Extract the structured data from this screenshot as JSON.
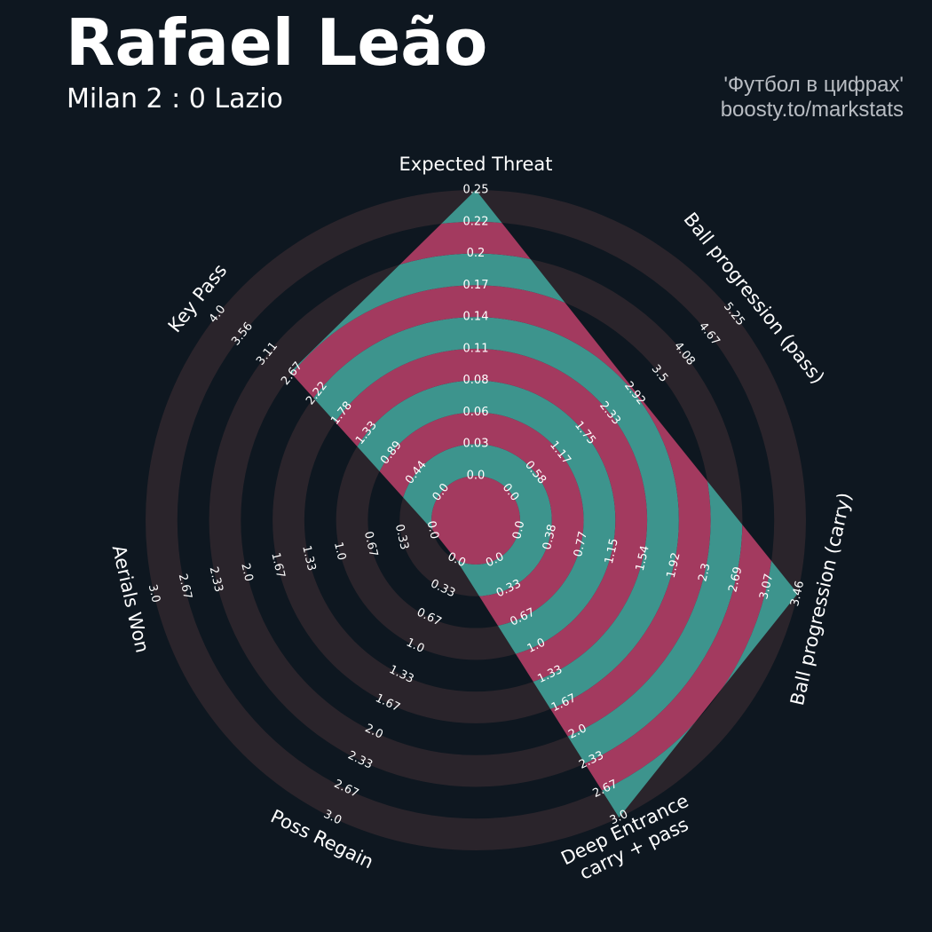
{
  "header": {
    "player_name": "Rafael Leão",
    "match": "Milan 2 : 0 Lazio",
    "credit_line1": "'Футбол в цифрах'",
    "credit_line2": "boosty.to/markstats"
  },
  "colors": {
    "background": "#0e1720",
    "ring_dark": "#2a242b",
    "fill_teal": "#3d948d",
    "fill_magenta": "#a33a5f",
    "text": "#ffffff"
  },
  "chart_data": {
    "type": "radar",
    "title": "Rafael Leão",
    "subtitle": "Milan 2 : 0 Lazio",
    "rings": 6,
    "params": [
      {
        "label": [
          "Expected Threat"
        ],
        "min": 0,
        "max": 0.25,
        "value": 0.25,
        "ticks": [
          "0.0",
          "0.03",
          "0.06",
          "0.08",
          "0.11",
          "0.14",
          "0.17",
          "0.2",
          "0.22",
          "0.25"
        ]
      },
      {
        "label": [
          "Ball progression (pass)"
        ],
        "min": 0,
        "max": 5.25,
        "value": 2.95,
        "ticks": [
          "0.0",
          "0.58",
          "1.17",
          "1.75",
          "2.33",
          "2.92",
          "3.5",
          "4.08",
          "4.67",
          "5.25"
        ]
      },
      {
        "label": [
          "Ball progression (carry)"
        ],
        "min": 0,
        "max": 3.46,
        "value": 3.46,
        "ticks": [
          "0.0",
          "0.38",
          "0.77",
          "1.15",
          "1.54",
          "1.92",
          "2.3",
          "2.69",
          "3.07",
          "3.46"
        ]
      },
      {
        "label": [
          "Deep Entrance",
          "carry + pass"
        ],
        "min": 0,
        "max": 3.0,
        "value": 3.0,
        "ticks": [
          "0.0",
          "0.33",
          "0.67",
          "1.0",
          "1.33",
          "1.67",
          "2.0",
          "2.33",
          "2.67",
          "3.0"
        ]
      },
      {
        "label": [
          "Poss Regain"
        ],
        "min": 0,
        "max": 3.0,
        "value": 0,
        "ticks": [
          "0.0",
          "0.33",
          "0.67",
          "1.0",
          "1.33",
          "1.67",
          "2.0",
          "2.33",
          "2.67",
          "3.0"
        ]
      },
      {
        "label": [
          "Aerials Won"
        ],
        "min": 0,
        "max": 3.0,
        "value": 0,
        "ticks": [
          "0.0",
          "0.33",
          "0.67",
          "1.0",
          "1.33",
          "1.67",
          "2.0",
          "2.33",
          "2.67",
          "3.0"
        ]
      },
      {
        "label": [
          "Key Pass"
        ],
        "min": 0,
        "max": 4.0,
        "value": 2.7,
        "ticks": [
          "0.0",
          "0.44",
          "0.89",
          "1.33",
          "1.78",
          "2.22",
          "2.67",
          "3.11",
          "3.56",
          "4.0"
        ]
      }
    ]
  }
}
